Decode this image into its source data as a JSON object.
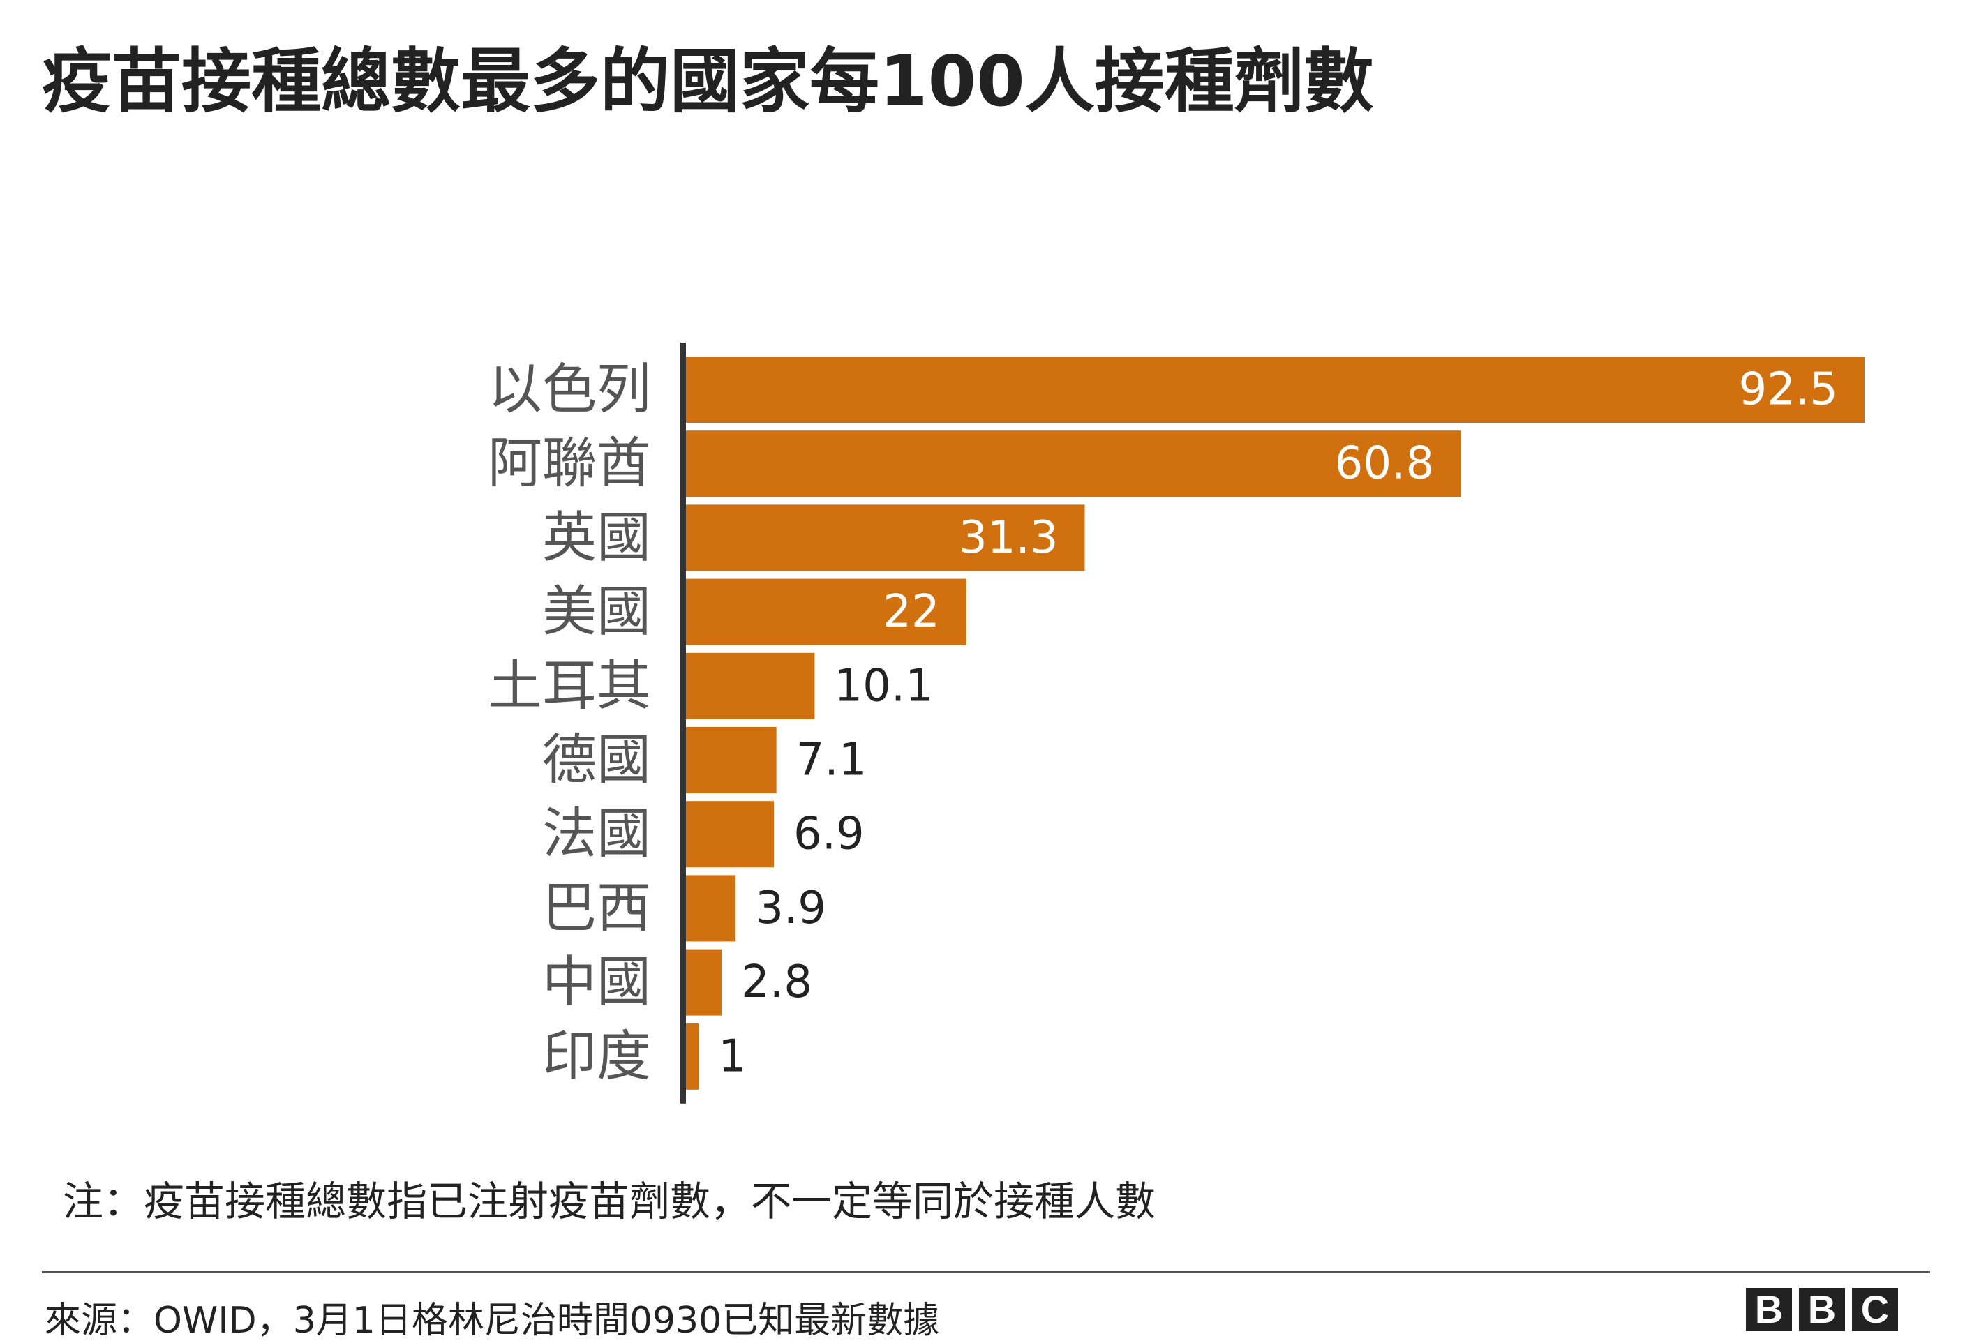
{
  "title": "疫苗接種總數最多的國家每100人接種劑數",
  "note": "注：疫苗接種總數指已注射疫苗劑數，不一定等同於接種人數",
  "source": "來源：OWID，3月1日格林尼治時間0930已知最新數據",
  "logo": [
    "B",
    "B",
    "C"
  ],
  "colors": {
    "bar": "#D1700F",
    "axis": "#333333",
    "label_inside": "#ffffff",
    "label_outside": "#222222"
  },
  "chart_data": {
    "type": "bar",
    "orientation": "horizontal",
    "title": "疫苗接種總數最多的國家每100人接種劑數",
    "xlabel": "",
    "ylabel": "",
    "xlim": [
      0,
      92.5
    ],
    "grid": false,
    "categories": [
      "以色列",
      "阿聯酋",
      "英國",
      "美國",
      "土耳其",
      "德國",
      "法國",
      "巴西",
      "中國",
      "印度"
    ],
    "values": [
      92.5,
      60.8,
      31.3,
      22,
      10.1,
      7.1,
      6.9,
      3.9,
      2.8,
      1
    ],
    "value_labels": [
      "92.5",
      "60.8",
      "31.3",
      "22",
      "10.1",
      "7.1",
      "6.9",
      "3.9",
      "2.8",
      "1"
    ]
  }
}
